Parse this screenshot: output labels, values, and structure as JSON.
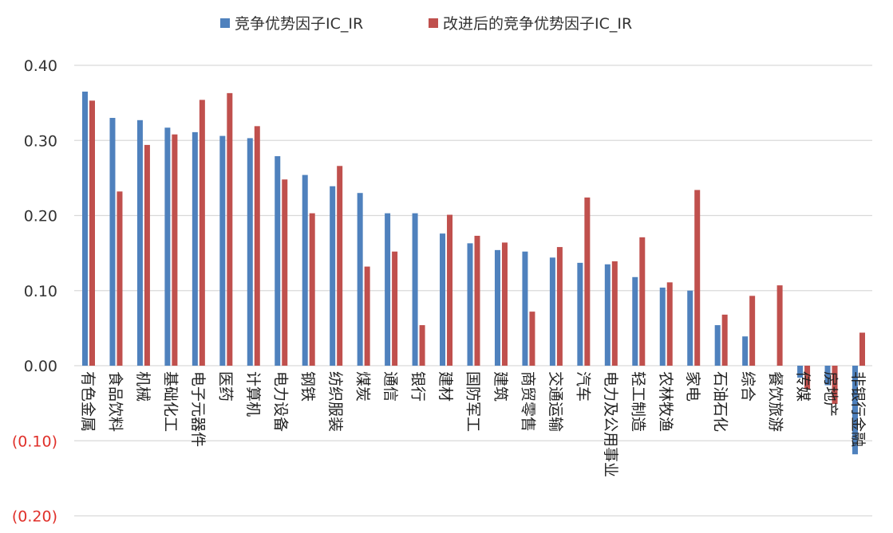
{
  "chart_data": {
    "type": "bar",
    "title": "",
    "xlabel": "",
    "ylabel": "",
    "ylim": [
      -0.2,
      0.4
    ],
    "yticks": [
      0.4,
      0.3,
      0.2,
      0.1,
      0.0,
      -0.1,
      -0.2
    ],
    "ytick_labels": [
      "0.40",
      "0.30",
      "0.20",
      "0.10",
      "0.00",
      "(0.10)",
      "(0.20)"
    ],
    "grid": true,
    "legend_position": "top",
    "categories": [
      "有色金属",
      "食品饮料",
      "机械",
      "基础化工",
      "电子元器件",
      "医药",
      "计算机",
      "电力设备",
      "钢铁",
      "纺织服装",
      "煤炭",
      "通信",
      "银行",
      "建材",
      "国防军工",
      "建筑",
      "商贸零售",
      "交通运输",
      "汽车",
      "电力及公用事业",
      "轻工制造",
      "农林牧渔",
      "家电",
      "石油石化",
      "综合",
      "餐饮旅游",
      "传媒",
      "房地产",
      "非银行金融"
    ],
    "series": [
      {
        "name": "竞争优势因子IC_IR",
        "color": "#4f81bd",
        "values": [
          0.365,
          0.33,
          0.327,
          0.317,
          0.311,
          0.306,
          0.303,
          0.279,
          0.254,
          0.239,
          0.23,
          0.203,
          0.203,
          0.176,
          0.163,
          0.154,
          0.152,
          0.144,
          0.137,
          0.135,
          0.118,
          0.104,
          0.1,
          0.054,
          0.039,
          0.0,
          -0.016,
          -0.026,
          -0.118
        ]
      },
      {
        "name": "改进后的竞争优势因子IC_IR",
        "color": "#c0504d",
        "values": [
          0.353,
          0.232,
          0.294,
          0.308,
          0.354,
          0.363,
          0.319,
          0.248,
          0.203,
          0.266,
          0.132,
          0.152,
          0.054,
          0.201,
          0.173,
          0.164,
          0.072,
          0.158,
          0.224,
          0.139,
          0.171,
          0.111,
          0.234,
          0.068,
          0.093,
          0.107,
          -0.031,
          -0.051,
          0.044
        ]
      }
    ]
  }
}
